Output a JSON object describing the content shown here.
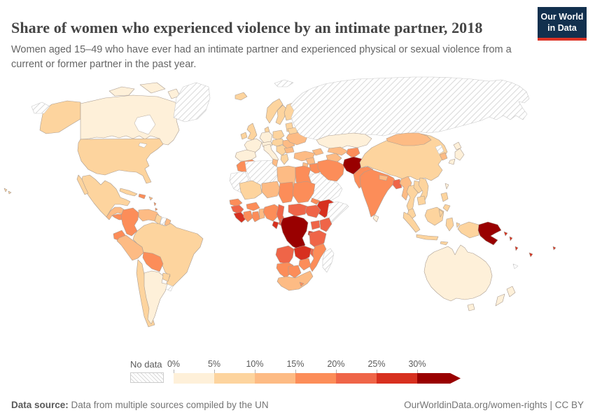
{
  "header": {
    "title": "Share of women who experienced violence by an intimate partner, 2018",
    "subtitle": "Women aged 15–49 who have ever had an intimate partner and experienced physical or sexual violence from a current or former partner in the past year.",
    "logo": {
      "line1": "Our World",
      "line2": "in Data"
    }
  },
  "colors": {
    "logo_bg": "#12304e",
    "logo_accent": "#dc3224",
    "country_border": "#ab9d92",
    "nodata_border": "#c9c9c9"
  },
  "legend": {
    "no_data_label": "No data",
    "ticks": [
      "0%",
      "5%",
      "10%",
      "15%",
      "20%",
      "25%",
      "30%"
    ],
    "colors": [
      "#fef0d9",
      "#fdd49e",
      "#fdbb84",
      "#fc8d59",
      "#ef6548",
      "#d7301f",
      "#990000"
    ]
  },
  "footer": {
    "source_label": "Data source:",
    "source_text": " Data from multiple sources compiled by the UN",
    "link": "OurWorldinData.org/women-rights",
    "separator": " | ",
    "license": "CC BY"
  },
  "chart_data": {
    "type": "choropleth_map",
    "title": "Share of women who experienced violence by an intimate partner, 2018",
    "unit": "% of women aged 15–49, past year",
    "bins": [
      "0–5%",
      "5–10%",
      "10–15%",
      "15–20%",
      "20–25%",
      "25–30%",
      "30%+"
    ],
    "bin_colors": [
      "#fef0d9",
      "#fdd49e",
      "#fdbb84",
      "#fc8d59",
      "#ef6548",
      "#d7301f",
      "#990000"
    ],
    "no_data_style": "diagonal-hatch",
    "values": {
      "canada": 0,
      "alaska": 1,
      "united-states": 1,
      "greenland": null,
      "hawaii": 1,
      "mexico": 1,
      "guatemala-honduras-nicaragua": 2,
      "costa-rica-panama": 3,
      "cuba": 1,
      "haiti-dominican-republic": 3,
      "puerto-rico": 2,
      "lesser-antilles": 3,
      "colombia": 3,
      "venezuela": 2,
      "guyana": 1,
      "suriname": null,
      "french-guiana": 2,
      "ecuador": 3,
      "peru": 2,
      "brazil": 1,
      "bolivia": 3,
      "paraguay": 1,
      "chile": 1,
      "argentina": 0,
      "uruguay": null,
      "iceland": 1,
      "ireland": 1,
      "united-kingdom": 1,
      "norway": 1,
      "sweden": 1,
      "finland": 1,
      "denmark": 1,
      "baltic-states": 1,
      "belarus": 1,
      "poland": 1,
      "germany": 0,
      "france": 0,
      "spain-portugal": 0,
      "italy": 0,
      "switzerland-austria": 0,
      "czechia-slovakia-hungary": 1,
      "balkans": 1,
      "greece": 1,
      "romania": 2,
      "bulgaria": 2,
      "ukraine": 2,
      "russia": null,
      "svalbard": null,
      "chukotka": null,
      "kazakhstan": 0,
      "caucasus": 2,
      "turkmenistan": 2,
      "uzbekistan": 2,
      "kyrgyzstan-tajikistan": 3,
      "turkey": 2,
      "syria": 2,
      "jordan-israel": 2,
      "iraq": 3,
      "arabian-peninsula": null,
      "iran": 3,
      "afghanistan": 6,
      "pakistan": 3,
      "india": 3,
      "nepal": 2,
      "sri-lanka": 0,
      "bangladesh": 4,
      "myanmar": 2,
      "thailand": 1,
      "laos": 1,
      "vietnam": 1,
      "cambodia": 1,
      "malaysia": 1,
      "borneo": 1,
      "china": 1,
      "mongolia": 2,
      "north-korea": null,
      "south-korea": 2,
      "japan": 0,
      "taiwan": 0,
      "philippines": 1,
      "indonesia": 1,
      "papua-new-guinea": 6,
      "solomon-islands": 5,
      "vanuatu": 5,
      "fiji": 5,
      "samoa": 5,
      "new-caledonia": null,
      "australia": 0,
      "tasmania": 0,
      "new-zealand": 0,
      "morocco": 3,
      "western-sahara-mauritania": null,
      "algeria": null,
      "tunisia": 2,
      "libya": 2,
      "egypt": 3,
      "mali": 1,
      "niger": 2,
      "chad": 3,
      "sudan": 3,
      "eritrea": 3,
      "ethiopia": 5,
      "somalia": null,
      "senegal": 3,
      "guinea": 4,
      "sierra-leone-liberia": 5,
      "ivory-coast": 3,
      "ghana": 3,
      "togo-benin": 2,
      "burkina-faso": 3,
      "nigeria": 3,
      "cameroon": 4,
      "gabon": 5,
      "congo": 4,
      "central-african-republic": 4,
      "south-sudan": 4,
      "dr-congo": 6,
      "uganda": 4,
      "kenya": 4,
      "rwanda-burundi": 5,
      "tanzania": 4,
      "angola": 4,
      "zambia": 5,
      "malawi": 4,
      "mozambique": 3,
      "zimbabwe": 3,
      "namibia": 3,
      "botswana": 3,
      "south-africa": 2,
      "lesotho": 3,
      "madagascar": null
    }
  }
}
